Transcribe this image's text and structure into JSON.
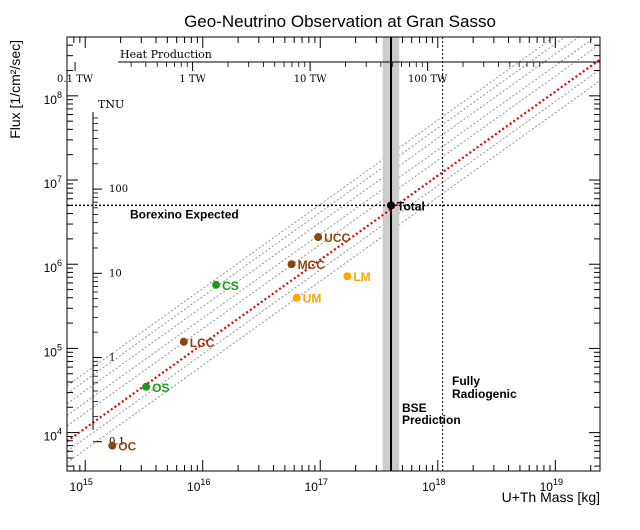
{
  "chart_data": {
    "type": "scatter",
    "title": "Geo-Neutrino Observation at Gran Sasso",
    "xlabel": "U+Th Mass [kg]",
    "ylabel": "Flux [1/cm²/sec]",
    "x_scale": "log",
    "y_scale": "log",
    "xlim": [
      700000000000000.0,
      2.4e+19
    ],
    "ylim": [
      3500.0,
      500000000.0
    ],
    "x_ticks": [
      {
        "value": 1000000000000000.0,
        "base": "10",
        "exp": "15"
      },
      {
        "value": 1e+16,
        "base": "10",
        "exp": "16"
      },
      {
        "value": 1e+17,
        "base": "10",
        "exp": "17"
      },
      {
        "value": 1e+18,
        "base": "10",
        "exp": "18"
      },
      {
        "value": 1e+19,
        "base": "10",
        "exp": "19"
      }
    ],
    "y_ticks": [
      {
        "value": 10000.0,
        "base": "10",
        "exp": "4"
      },
      {
        "value": 100000.0,
        "base": "10",
        "exp": "5"
      },
      {
        "value": 1000000.0,
        "base": "10",
        "exp": "6"
      },
      {
        "value": 10000000.0,
        "base": "10",
        "exp": "7"
      },
      {
        "value": 100000000.0,
        "base": "10",
        "exp": "8"
      }
    ],
    "heat_axis": {
      "label": "Heat Production",
      "ticks": [
        {
          "label": "0.1 TW",
          "x": 820000000000000.0
        },
        {
          "label": "1 TW",
          "x": 8200000000000000.0
        },
        {
          "label": "10 TW",
          "x": 8.2e+16
        },
        {
          "label": "100 TW",
          "x": 8.2e+17
        }
      ]
    },
    "tnu_axis": {
      "label": "TNU",
      "ticks": [
        {
          "label": "100",
          "y": 7800000.0
        },
        {
          "label": "10",
          "y": 780000.0
        },
        {
          "label": "1",
          "y": 78000.0
        },
        {
          "label": "0.1",
          "y": 7800.0
        }
      ]
    },
    "points": [
      {
        "label": "OC",
        "x": 1700000000000000.0,
        "y": 7000.0,
        "color": "#8B4513"
      },
      {
        "label": "OS",
        "x": 3300000000000000.0,
        "y": 35000.0,
        "color": "#1a9a1a"
      },
      {
        "label": "LCC",
        "x": 6900000000000000.0,
        "y": 120000.0,
        "color": "#8B4513"
      },
      {
        "label": "CS",
        "x": 1.3e+16,
        "y": 570000.0,
        "color": "#1a9a1a"
      },
      {
        "label": "MCC",
        "x": 5.7e+16,
        "y": 1000000.0,
        "color": "#8B4513"
      },
      {
        "label": "UCC",
        "x": 9.6e+16,
        "y": 2100000.0,
        "color": "#8B4513"
      },
      {
        "label": "UM",
        "x": 6.3e+16,
        "y": 400000.0,
        "color": "#FFA500"
      },
      {
        "label": "LM",
        "x": 1.7e+17,
        "y": 720000.0,
        "color": "#FFA500"
      },
      {
        "label": "Total",
        "x": 4e+17,
        "y": 5000000.0,
        "color": "#000000"
      }
    ],
    "reference_lines": {
      "borexino_expected": {
        "label": "Borexino Expected",
        "y": 5000000.0
      },
      "bse_prediction": {
        "label_line1": "BSE",
        "label_line2": "Prediction",
        "x": 4e+17,
        "band": [
          3.4e+17,
          4.7e+17
        ]
      },
      "fully_radiogenic": {
        "label_line1": "Fully",
        "label_line2": "Radiogenic",
        "x": 1.1e+18
      }
    },
    "fit_line": {
      "color": "#e00000",
      "points": [
        [
          700000000000000.0,
          7900.0
        ],
        [
          2.4e+19,
          270000000.0
        ]
      ]
    },
    "grid_lines": {
      "color": "#8a8a8a",
      "y_at_xmin": [
        4400.0,
        6000.0,
        12000.0,
        16000.0,
        22000.0,
        29000.0,
        36000.0
      ]
    }
  }
}
